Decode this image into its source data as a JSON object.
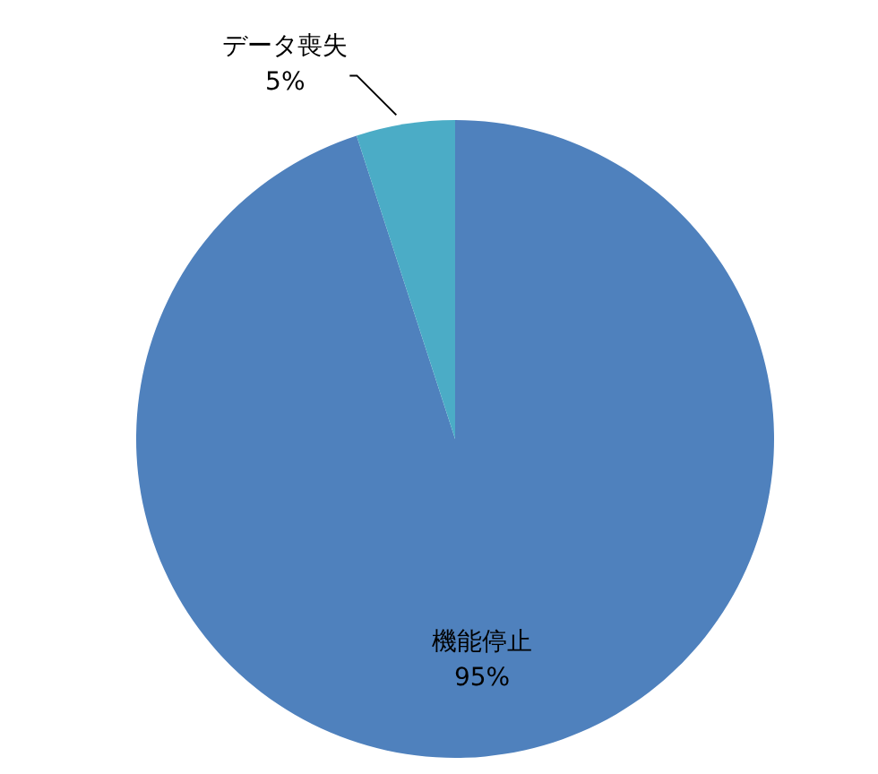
{
  "chart_data": {
    "type": "pie",
    "categories": [
      "機能停止",
      "データ喪失"
    ],
    "values": [
      95,
      5
    ],
    "colors": [
      "#4f81bd",
      "#4bacc6"
    ],
    "value_labels": [
      "95%",
      "5%"
    ]
  }
}
